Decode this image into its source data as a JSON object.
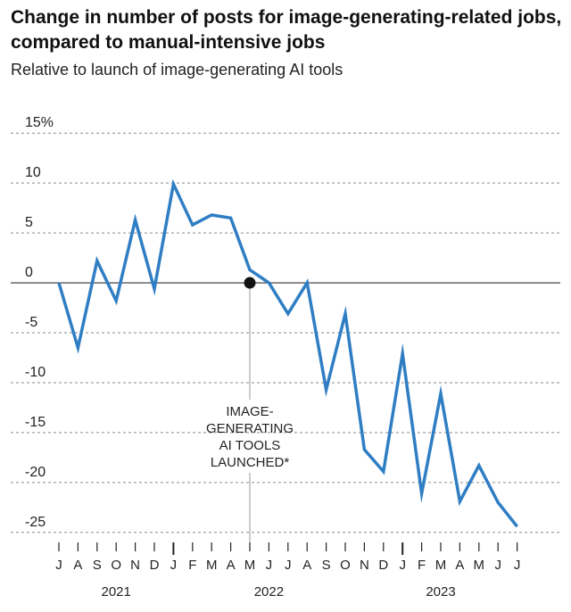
{
  "chart_data": {
    "type": "line",
    "title": "Change in number of posts for image-generating-related jobs, compared to manual-intensive jobs",
    "subtitle": "Relative to launch of image-generating AI tools",
    "y_tick_labels": [
      "15%",
      "10",
      "5",
      "0",
      "-5",
      "-10",
      "-15",
      "-20",
      "-25"
    ],
    "y_ticks": [
      15,
      10,
      5,
      0,
      -5,
      -10,
      -15,
      -20,
      -25
    ],
    "ylim": [
      -26,
      16
    ],
    "x_month_labels": [
      "J",
      "A",
      "S",
      "O",
      "N",
      "D",
      "J",
      "F",
      "M",
      "A",
      "M",
      "J",
      "J",
      "A",
      "S",
      "O",
      "N",
      "D",
      "J",
      "F",
      "M",
      "A",
      "M",
      "J",
      "J"
    ],
    "x_year_labels": [
      {
        "label": "2021",
        "index": 3
      },
      {
        "label": "2022",
        "index": 11
      },
      {
        "label": "2023",
        "index": 20
      }
    ],
    "year_start_indices": [
      6,
      18
    ],
    "series": [
      {
        "color": "#2f7ec4",
        "values": [
          0,
          -6.5,
          2.2,
          -1.8,
          6.3,
          -0.6,
          9.9,
          5.8,
          6.8,
          6.5,
          1.3,
          0,
          -3.1,
          0,
          -10.7,
          -3.1,
          -16.7,
          -18.9,
          -7.1,
          -21.1,
          -11.1,
          -21.9,
          -18.3,
          -22.0,
          -24.4
        ]
      }
    ],
    "annotation": {
      "index": 10,
      "value": 0,
      "lines": [
        "IMAGE-",
        "GENERATING",
        "AI TOOLS",
        "LAUNCHED*"
      ]
    },
    "grid": "dashed horizontal",
    "zero_line": true
  }
}
